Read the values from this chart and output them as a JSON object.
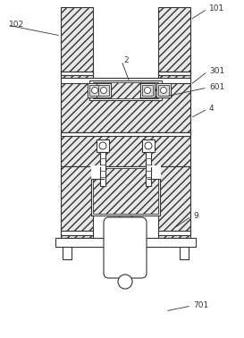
{
  "bg_color": "#ffffff",
  "line_color": "#333333",
  "lw": 0.8,
  "fig_width": 2.73,
  "fig_height": 3.78,
  "hatch_density": "////"
}
